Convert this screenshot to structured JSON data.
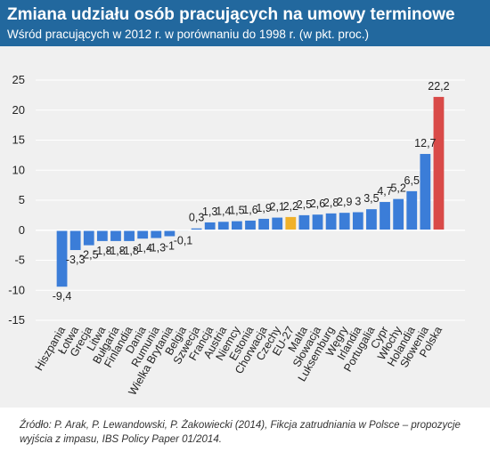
{
  "header": {
    "title": "Zmiana udziału osób pracujących na umowy terminowe",
    "subtitle": "Wśród pracujących w 2012 r. w porównaniu do 1998 r. (w pkt. proc.)"
  },
  "source": "Źródło: P. Arak, P. Lewandowski, P. Żakowiecki (2014), Fikcja zatrudniania w Polsce – propozycje wyjścia z impasu, IBS Policy Paper 01/2014.",
  "colors": {
    "header_bg": "#22689e",
    "bar_default": "#3b7dd8",
    "bar_eu": "#f0b12a",
    "bar_poland": "#d94a48"
  },
  "chart_data": {
    "type": "bar",
    "categories": [
      "Hiszpania",
      "Łotwa",
      "Grecja",
      "Litwa",
      "Bułgaria",
      "Finlandia",
      "Dania",
      "Rumunia",
      "Wielka Brytania",
      "Belgia",
      "Szwecja",
      "Francja",
      "Austria",
      "Niemcy",
      "Estonia",
      "Chorwacja",
      "Czechy",
      "EU-27",
      "Malta",
      "Słowacja",
      "Luksemburg",
      "Węgry",
      "Irlandia",
      "Portugalia",
      "Cypr",
      "Włochy",
      "Holandia",
      "Słowenia",
      "Polska"
    ],
    "values": [
      -9.4,
      -3.3,
      -2.5,
      -1.8,
      -1.8,
      -1.8,
      -1.4,
      -1.3,
      -1,
      -0.1,
      0.3,
      1.3,
      1.4,
      1.5,
      1.6,
      1.9,
      2.1,
      2.2,
      2.5,
      2.6,
      2.8,
      2.9,
      3,
      3.5,
      4.7,
      5.2,
      6.5,
      12.7,
      22.2
    ],
    "value_labels": [
      "-9,4",
      "-3,3",
      "-2,5",
      "-1,8",
      "-1,8",
      "-1,8",
      "-1,4",
      "-1,3",
      "-1",
      "-0,1",
      "0,3",
      "1,3",
      "1,4",
      "1,5",
      "1,6",
      "1,9",
      "2,1",
      "2,2",
      "2,5",
      "2,6",
      "2,8",
      "2,9",
      "3",
      "3,5",
      "4,7",
      "5,2",
      "6,5",
      "12,7",
      "22,2"
    ],
    "highlight": {
      "EU-27": "bar_eu",
      "Polska": "bar_poland"
    },
    "ylim": [
      -15,
      25
    ],
    "yticks": [
      -15,
      -10,
      -5,
      0,
      5,
      10,
      15,
      20,
      25
    ],
    "ytick_labels": [
      "-15",
      "-10",
      "-5",
      "0",
      "5",
      "10",
      "15",
      "20",
      "25"
    ],
    "grid": true,
    "xlabel": "",
    "ylabel": ""
  }
}
